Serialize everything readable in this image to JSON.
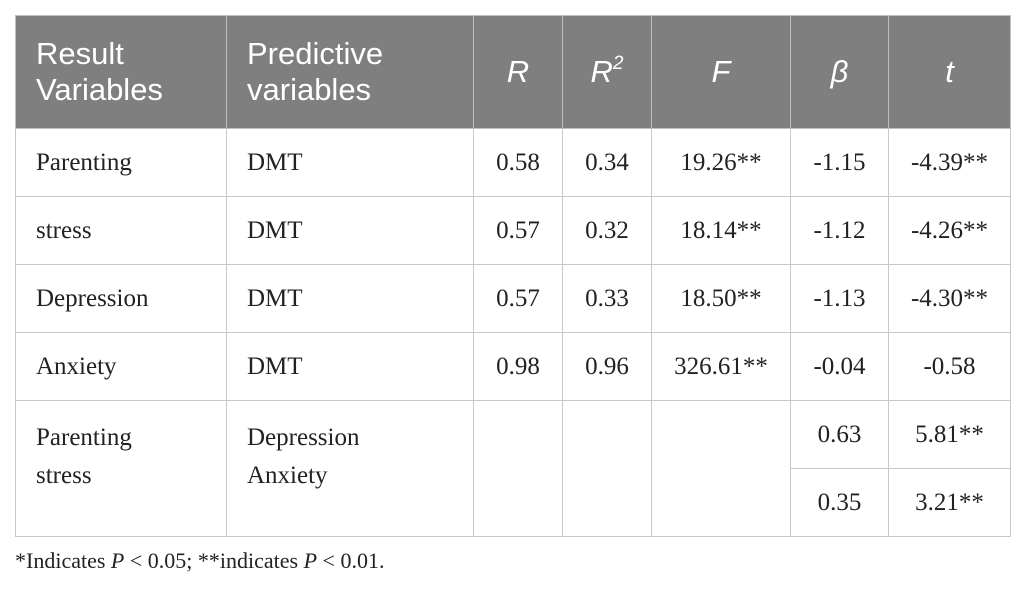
{
  "table": {
    "headers": {
      "result": [
        "Result",
        "Variables"
      ],
      "predictive": [
        "Predictive",
        "variables"
      ],
      "r": "R",
      "r2_base": "R",
      "r2_sup": "2",
      "f": "F",
      "beta": "β",
      "t": "t"
    },
    "rows": [
      {
        "result": "Parenting",
        "predictor": "DMT",
        "r": "0.58",
        "r2": "0.34",
        "f": "19.26**",
        "beta": "-1.15",
        "t": "-4.39**"
      },
      {
        "result": "stress",
        "predictor": "DMT",
        "r": "0.57",
        "r2": "0.32",
        "f": "18.14**",
        "beta": "-1.12",
        "t": "-4.26**"
      },
      {
        "result": "Depression",
        "predictor": "DMT",
        "r": "0.57",
        "r2": "0.33",
        "f": "18.50**",
        "beta": "-1.13",
        "t": "-4.30**"
      },
      {
        "result": "Anxiety",
        "predictor": "DMT",
        "r": "0.98",
        "r2": "0.96",
        "f": "326.61**",
        "beta": "-0.04",
        "t": "-0.58"
      }
    ],
    "last_group": {
      "result": [
        "Parenting",
        "stress"
      ],
      "predictors": [
        "Depression",
        "Anxiety"
      ],
      "rows": [
        {
          "beta": "0.63",
          "t": "5.81**"
        },
        {
          "beta": "0.35",
          "t": "3.21**"
        }
      ]
    }
  },
  "footnote": {
    "part1": "*Indicates ",
    "p1": "P",
    "part2": " < 0.05; **indicates ",
    "p2": "P",
    "part3": " < 0.01."
  }
}
